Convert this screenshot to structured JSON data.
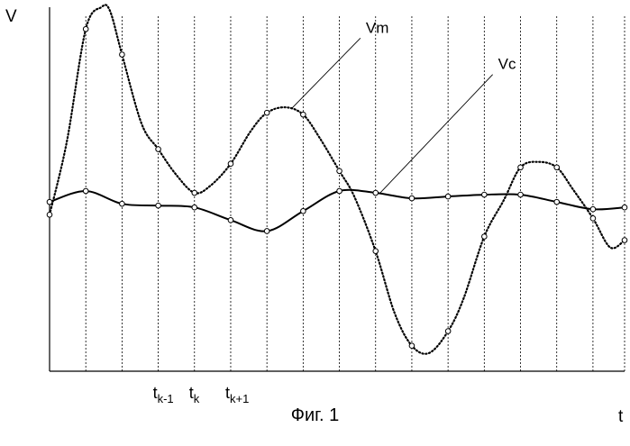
{
  "chart_data": {
    "type": "line",
    "grid": "vertical sampling lines at each sample time",
    "axes": {
      "ylabel": "V",
      "xlabel": "t",
      "xlim": [
        0,
        1
      ],
      "ylim": [
        0,
        1
      ]
    },
    "sample_times": [
      0.0,
      0.063,
      0.126,
      0.189,
      0.252,
      0.315,
      0.378,
      0.441,
      0.504,
      0.567,
      0.63,
      0.693,
      0.756,
      0.819,
      0.882,
      0.945,
      1.0
    ],
    "tick_labels": [
      {
        "base": "t",
        "sub": "k-1",
        "at": 0.189
      },
      {
        "base": "t",
        "sub": "k",
        "at": 0.252
      },
      {
        "base": "t",
        "sub": "k+1",
        "at": 0.315
      }
    ],
    "series": [
      {
        "name": "Vm",
        "style": "dotted",
        "color": "#000000",
        "points": [
          [
            0.0,
            0.43
          ],
          [
            0.03,
            0.63
          ],
          [
            0.063,
            0.94
          ],
          [
            0.09,
            1.0
          ],
          [
            0.105,
            0.99
          ],
          [
            0.126,
            0.87
          ],
          [
            0.16,
            0.68
          ],
          [
            0.189,
            0.61
          ],
          [
            0.22,
            0.54
          ],
          [
            0.252,
            0.49
          ],
          [
            0.28,
            0.51
          ],
          [
            0.315,
            0.57
          ],
          [
            0.35,
            0.66
          ],
          [
            0.378,
            0.71
          ],
          [
            0.41,
            0.725
          ],
          [
            0.441,
            0.705
          ],
          [
            0.47,
            0.64
          ],
          [
            0.504,
            0.55
          ],
          [
            0.53,
            0.48
          ],
          [
            0.567,
            0.33
          ],
          [
            0.6,
            0.16
          ],
          [
            0.63,
            0.07
          ],
          [
            0.66,
            0.05
          ],
          [
            0.693,
            0.11
          ],
          [
            0.72,
            0.2
          ],
          [
            0.756,
            0.37
          ],
          [
            0.79,
            0.47
          ],
          [
            0.819,
            0.56
          ],
          [
            0.85,
            0.575
          ],
          [
            0.882,
            0.56
          ],
          [
            0.91,
            0.5
          ],
          [
            0.945,
            0.42
          ],
          [
            0.975,
            0.34
          ],
          [
            1.0,
            0.36
          ]
        ]
      },
      {
        "name": "Vc",
        "style": "solid",
        "color": "#000000",
        "points": [
          [
            0.0,
            0.465
          ],
          [
            0.063,
            0.495
          ],
          [
            0.126,
            0.46
          ],
          [
            0.189,
            0.455
          ],
          [
            0.252,
            0.45
          ],
          [
            0.315,
            0.415
          ],
          [
            0.378,
            0.385
          ],
          [
            0.441,
            0.44
          ],
          [
            0.504,
            0.495
          ],
          [
            0.567,
            0.49
          ],
          [
            0.63,
            0.475
          ],
          [
            0.693,
            0.48
          ],
          [
            0.756,
            0.485
          ],
          [
            0.819,
            0.485
          ],
          [
            0.882,
            0.465
          ],
          [
            0.945,
            0.445
          ],
          [
            1.0,
            0.45
          ]
        ]
      }
    ],
    "annotations": [
      {
        "text": "Vm",
        "series": "Vm",
        "label_anchor": [
          0.55,
          0.93
        ],
        "points_to": [
          0.42,
          0.72
        ]
      },
      {
        "text": "Vc",
        "series": "Vc",
        "label_anchor": [
          0.78,
          0.83
        ],
        "points_to": [
          0.575,
          0.49
        ]
      }
    ]
  },
  "caption": "Фиг. 1"
}
